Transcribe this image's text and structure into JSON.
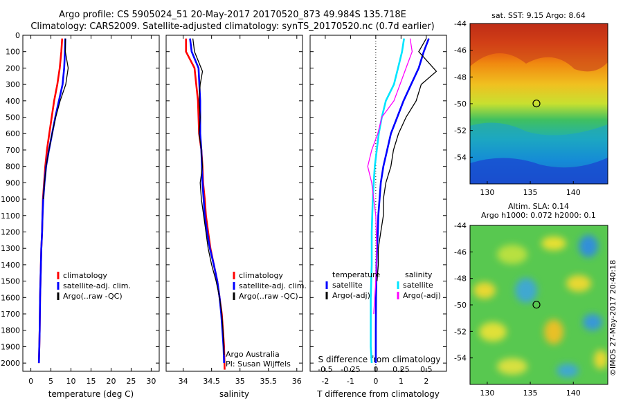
{
  "header": {
    "title_line1": "Argo profile: CS 5905024_51 20-May-2017 20170520_873 49.984S 135.718E",
    "title_line2": "Climatology: CARS2009. Satellite-adjusted climatology: synTS_20170520.nc (0.7d earlier)"
  },
  "credit": {
    "institution": "Argo Australia",
    "pi": "PI: Susan Wijffels"
  },
  "stamp": "©IMOS 27-May-2017 20:40:18",
  "colors": {
    "climatology": "#ff0000",
    "satellite": "#0000ff",
    "argo": "#000000",
    "salinity_satellite": "#00e5ff",
    "salinity_argo": "#ff00ff"
  },
  "legends": {
    "profile": [
      "climatology",
      "satellite-adj. clim.",
      "Argo(..raw -QC)"
    ],
    "diff_temperature_title": "temperature",
    "diff_salinity_title": "salinity",
    "diff_temperature": [
      "satellite",
      "Argo(-adj)"
    ],
    "diff_salinity": [
      "satellite",
      "Argo(-adj)"
    ]
  },
  "maps": {
    "sst_title": "sat. SST: 9.15  Argo: 8.64",
    "sla_title_line1": "Altim. SLA: 0.14",
    "sla_title_line2": "Argo h1000: 0.072 h2000: 0.1"
  },
  "chart_data": [
    {
      "type": "line",
      "name": "temperature-profile",
      "xlabel": "temperature (deg C)",
      "xlim": [
        -2,
        32
      ],
      "xticks": [
        0,
        5,
        10,
        15,
        20,
        25,
        30
      ],
      "ylim": [
        2050,
        0
      ],
      "yticks": [
        0,
        100,
        200,
        300,
        400,
        500,
        600,
        700,
        800,
        900,
        1000,
        1100,
        1200,
        1300,
        1400,
        1500,
        1600,
        1700,
        1800,
        1900,
        2000
      ],
      "series": [
        {
          "name": "climatology",
          "color": "#ff0000",
          "x": [
            7.8,
            7.6,
            7.2,
            6.6,
            5.8,
            5.2,
            4.6,
            4.0,
            3.6,
            3.3,
            3.0,
            2.9,
            2.8,
            2.6,
            2.5,
            2.4,
            2.3,
            2.2,
            2.1,
            2.0
          ],
          "y": [
            20,
            100,
            200,
            300,
            400,
            500,
            600,
            700,
            800,
            900,
            1000,
            1100,
            1200,
            1300,
            1400,
            1500,
            1600,
            1800,
            1900,
            2000
          ]
        },
        {
          "name": "satellite-adj. clim.",
          "color": "#0000ff",
          "x": [
            8.6,
            8.5,
            8.3,
            7.9,
            7.0,
            6.1,
            5.3,
            4.5,
            3.8,
            3.4,
            3.1,
            2.9,
            2.8,
            2.6,
            2.5,
            2.4,
            2.3,
            2.2,
            2.1,
            2.0
          ],
          "y": [
            20,
            100,
            200,
            300,
            400,
            500,
            600,
            700,
            800,
            900,
            1000,
            1100,
            1200,
            1300,
            1400,
            1500,
            1600,
            1800,
            1900,
            2000
          ]
        },
        {
          "name": "Argo(..raw -QC)",
          "color": "#000000",
          "x": [
            8.6,
            8.6,
            9.3,
            8.7,
            7.3,
            6.2,
            5.3,
            4.5,
            3.8,
            3.4,
            3.1
          ],
          "y": [
            20,
            100,
            200,
            300,
            400,
            500,
            600,
            700,
            800,
            900,
            1000
          ]
        }
      ]
    },
    {
      "type": "line",
      "name": "salinity-profile",
      "xlabel": "salinity",
      "xlim": [
        33.7,
        36.1
      ],
      "xticks": [
        34,
        34.5,
        35,
        35.5,
        36
      ],
      "ylim": [
        2050,
        0
      ],
      "series": [
        {
          "name": "climatology",
          "color": "#ff0000",
          "x": [
            34.05,
            34.05,
            34.2,
            34.26,
            34.28,
            34.32,
            34.34,
            34.35,
            34.38,
            34.4,
            34.44,
            34.48,
            34.54,
            34.6,
            34.64,
            34.68,
            34.7,
            34.72,
            34.73
          ],
          "y": [
            20,
            100,
            200,
            400,
            600,
            700,
            800,
            900,
            1000,
            1100,
            1200,
            1300,
            1400,
            1500,
            1600,
            1700,
            1800,
            1900,
            2040
          ]
        },
        {
          "name": "satellite-adj. clim.",
          "color": "#0000ff",
          "x": [
            34.12,
            34.15,
            34.27,
            34.3,
            34.3,
            34.32,
            34.33,
            34.34,
            34.36,
            34.38,
            34.42,
            34.47,
            34.54,
            34.6,
            34.64,
            34.67,
            34.69,
            34.71,
            34.72
          ],
          "y": [
            20,
            100,
            200,
            400,
            600,
            700,
            800,
            900,
            1000,
            1100,
            1200,
            1300,
            1400,
            1500,
            1600,
            1700,
            1800,
            1900,
            2000
          ]
        },
        {
          "name": "Argo(..raw -QC)",
          "color": "#000000",
          "x": [
            34.17,
            34.2,
            34.34,
            34.3,
            34.28,
            34.3,
            34.28,
            34.32,
            34.34,
            34.3,
            34.32,
            34.36,
            34.4,
            34.44,
            34.5,
            34.58,
            34.64,
            34.68,
            34.7,
            34.72
          ],
          "y": [
            20,
            100,
            220,
            300,
            400,
            500,
            600,
            700,
            800,
            900,
            1000,
            1100,
            1200,
            1300,
            1400,
            1500,
            1600,
            1700,
            1800,
            1950
          ]
        }
      ]
    },
    {
      "type": "line",
      "name": "difference-profile",
      "xlabel": "T difference from climatology",
      "xlabel_top": "S difference from climatology",
      "xlim": [
        -2.6,
        2.8
      ],
      "xticks": [
        -2,
        -1,
        0,
        1,
        2
      ],
      "sticks": [
        -0.5,
        -0.25,
        0,
        0.25,
        0.5
      ],
      "ylim": [
        2050,
        0
      ],
      "series": [
        {
          "name": "temperature satellite",
          "color": "#0000ff",
          "x": [
            2.1,
            1.9,
            1.7,
            1.4,
            1.1,
            0.85,
            0.6,
            0.45,
            0.3,
            0.2,
            0.15,
            0.1,
            0.08,
            0.05,
            0.03,
            0.02,
            0.01,
            0,
            0
          ],
          "y": [
            20,
            100,
            200,
            300,
            400,
            500,
            600,
            700,
            800,
            900,
            1000,
            1100,
            1200,
            1300,
            1400,
            1500,
            1600,
            1800,
            2000
          ]
        },
        {
          "name": "temperature Argo(-adj)",
          "color": "#000000",
          "x": [
            2.0,
            1.7,
            2.4,
            1.8,
            1.6,
            1.2,
            0.9,
            0.7,
            0.6,
            0.4,
            0.3,
            0.3,
            0.2,
            0.1,
            0.1,
            0.05
          ],
          "y": [
            20,
            100,
            220,
            300,
            400,
            500,
            600,
            700,
            800,
            900,
            1000,
            1100,
            1200,
            1300,
            1400,
            1500
          ]
        },
        {
          "name": "salinity satellite",
          "color": "#00e5ff",
          "x": [
            0.28,
            0.26,
            0.22,
            0.18,
            0.1,
            0.06,
            0.03,
            0.01,
            -0.01,
            -0.02,
            -0.03,
            -0.04,
            -0.04,
            -0.05,
            -0.05,
            -0.05,
            -0.05,
            -0.04
          ],
          "y": [
            20,
            100,
            200,
            300,
            400,
            500,
            600,
            700,
            800,
            900,
            1000,
            1200,
            1400,
            1600,
            1700,
            1800,
            1900,
            2000
          ]
        },
        {
          "name": "salinity Argo(-adj)",
          "color": "#ff00ff",
          "x": [
            0.34,
            0.36,
            0.3,
            0.24,
            0.18,
            0.06,
            0.02,
            -0.04,
            -0.08,
            -0.04,
            -0.02,
            0.0,
            0.01,
            0.0,
            -0.02
          ],
          "y": [
            20,
            100,
            200,
            300,
            400,
            500,
            600,
            700,
            800,
            900,
            1000,
            1100,
            1300,
            1500,
            1700
          ]
        }
      ]
    },
    {
      "type": "heatmap",
      "name": "sst-map",
      "title": "sat. SST: 9.15  Argo: 8.64",
      "xlim": [
        128,
        144
      ],
      "ylim": [
        -56,
        -44
      ],
      "xticks": [
        130,
        135,
        140
      ],
      "yticks": [
        -54,
        -52,
        -50,
        -48,
        -46,
        -44
      ],
      "argo_position": [
        135.718,
        -49.984
      ]
    },
    {
      "type": "heatmap",
      "name": "sla-map",
      "title": "Altim. SLA: 0.14",
      "xlim": [
        128,
        144
      ],
      "ylim": [
        -56,
        -44
      ],
      "xticks": [
        130,
        135,
        140
      ],
      "yticks": [
        -54,
        -52,
        -50,
        -48,
        -46,
        -44
      ],
      "argo_position": [
        135.718,
        -49.984
      ]
    }
  ]
}
